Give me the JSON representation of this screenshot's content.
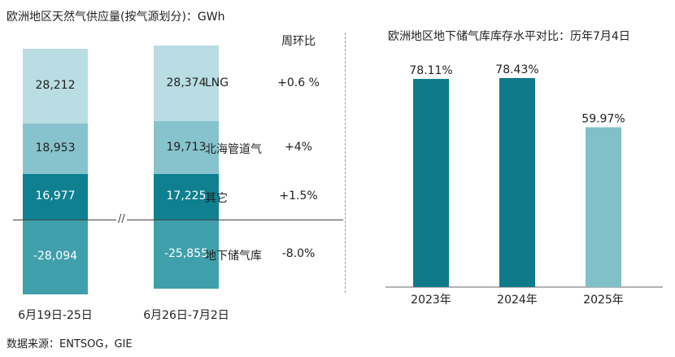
{
  "chart_data": [
    {
      "type": "bar",
      "title": "欧洲地区天然气供应量(按气源划分)：GWh",
      "categories": [
        "6月19日-25日",
        "6月26日-7月2日"
      ],
      "series": [
        {
          "name": "LNG",
          "values": [
            28212,
            28374
          ],
          "labels": [
            "28,212",
            "28,374"
          ],
          "wow": "+0.6 %",
          "color": "#b9dde3"
        },
        {
          "name": "北海管道气",
          "values": [
            18953,
            19713
          ],
          "labels": [
            "18,953",
            "19,713"
          ],
          "wow": "+4%",
          "color": "#87c3cc"
        },
        {
          "name": "其它",
          "values": [
            16977,
            17225
          ],
          "labels": [
            "16,977",
            "17,225"
          ],
          "wow": "+1.5%",
          "color": "#0e8090"
        },
        {
          "name": "地下储气库",
          "values": [
            -28094,
            -25855
          ],
          "labels": [
            "-28,094",
            "-25,855"
          ],
          "wow": "-8.0%",
          "color": "#3f9fab"
        }
      ],
      "wow_header": "周环比",
      "axis_break": "//"
    },
    {
      "type": "bar",
      "title": "欧洲地区地下储气库库存水平对比：历年7月4日",
      "categories": [
        "2023年",
        "2024年",
        "2025年"
      ],
      "values": [
        78.11,
        78.43,
        59.97
      ],
      "labels": [
        "78.11%",
        "78.43%",
        "59.97%"
      ],
      "colors": [
        "#0e7a8a",
        "#0e7a8a",
        "#7fc0c9"
      ]
    }
  ],
  "source": "数据来源：ENTSOG，GIE"
}
